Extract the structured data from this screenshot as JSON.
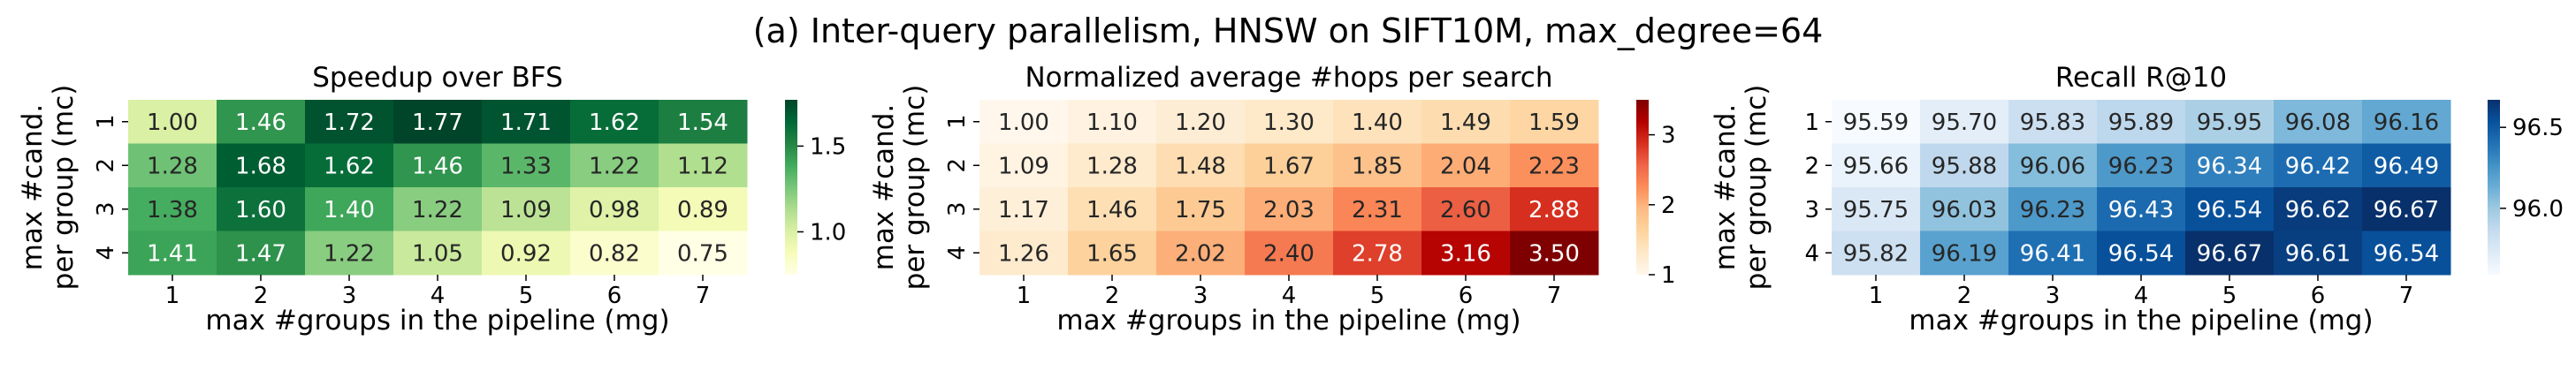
{
  "suptitle": "(a) Inter-query parallelism, HNSW on SIFT10M, max_degree=64",
  "chart_data": [
    {
      "type": "heatmap",
      "title": "Speedup over BFS",
      "xlabel": "max #groups in the pipeline (mg)",
      "ylabel": [
        "max #cand.",
        "per group (mc)"
      ],
      "x": [
        "1",
        "2",
        "3",
        "4",
        "5",
        "6",
        "7"
      ],
      "y": [
        "1",
        "2",
        "3",
        "4"
      ],
      "y_tick_rotation": "vertical",
      "colormap": "Greens",
      "vmin": 0.75,
      "vmax": 1.77,
      "colorbar_ticks": [
        "1.0",
        "1.5"
      ],
      "colorbar_tick_values": [
        1.0,
        1.5
      ],
      "values": [
        [
          "1.00",
          "1.46",
          "1.72",
          "1.77",
          "1.71",
          "1.62",
          "1.54"
        ],
        [
          "1.28",
          "1.68",
          "1.62",
          "1.46",
          "1.33",
          "1.22",
          "1.12"
        ],
        [
          "1.38",
          "1.60",
          "1.40",
          "1.22",
          "1.09",
          "0.98",
          "0.89"
        ],
        [
          "1.41",
          "1.47",
          "1.22",
          "1.05",
          "0.92",
          "0.82",
          "0.75"
        ]
      ]
    },
    {
      "type": "heatmap",
      "title": "Normalized average #hops per search",
      "xlabel": "max #groups in the pipeline (mg)",
      "ylabel": [
        "max #cand.",
        "per group (mc)"
      ],
      "x": [
        "1",
        "2",
        "3",
        "4",
        "5",
        "6",
        "7"
      ],
      "y": [
        "1",
        "2",
        "3",
        "4"
      ],
      "y_tick_rotation": "vertical",
      "colormap": "OrRd",
      "vmin": 1.0,
      "vmax": 3.5,
      "colorbar_ticks": [
        "1",
        "2",
        "3"
      ],
      "colorbar_tick_values": [
        1,
        2,
        3
      ],
      "values": [
        [
          "1.00",
          "1.10",
          "1.20",
          "1.30",
          "1.40",
          "1.49",
          "1.59"
        ],
        [
          "1.09",
          "1.28",
          "1.48",
          "1.67",
          "1.85",
          "2.04",
          "2.23"
        ],
        [
          "1.17",
          "1.46",
          "1.75",
          "2.03",
          "2.31",
          "2.60",
          "2.88"
        ],
        [
          "1.26",
          "1.65",
          "2.02",
          "2.40",
          "2.78",
          "3.16",
          "3.50"
        ]
      ]
    },
    {
      "type": "heatmap",
      "title": "Recall R@10",
      "xlabel": "max #groups in the pipeline (mg)",
      "ylabel": [
        "max #cand.",
        "per group (mc)"
      ],
      "x": [
        "1",
        "2",
        "3",
        "4",
        "5",
        "6",
        "7"
      ],
      "y": [
        "1",
        "2",
        "3",
        "4"
      ],
      "y_tick_rotation": "horizontal",
      "colormap": "Blues",
      "vmin": 95.59,
      "vmax": 96.67,
      "colorbar_ticks": [
        "96.0",
        "96.5"
      ],
      "colorbar_tick_values": [
        96.0,
        96.5
      ],
      "values": [
        [
          "95.59",
          "95.70",
          "95.83",
          "95.89",
          "95.95",
          "96.08",
          "96.16"
        ],
        [
          "95.66",
          "95.88",
          "96.06",
          "96.23",
          "96.34",
          "96.42",
          "96.49"
        ],
        [
          "95.75",
          "96.03",
          "96.23",
          "96.43",
          "96.54",
          "96.62",
          "96.67"
        ],
        [
          "95.82",
          "96.19",
          "96.41",
          "96.54",
          "96.67",
          "96.61",
          "96.54"
        ]
      ]
    }
  ]
}
